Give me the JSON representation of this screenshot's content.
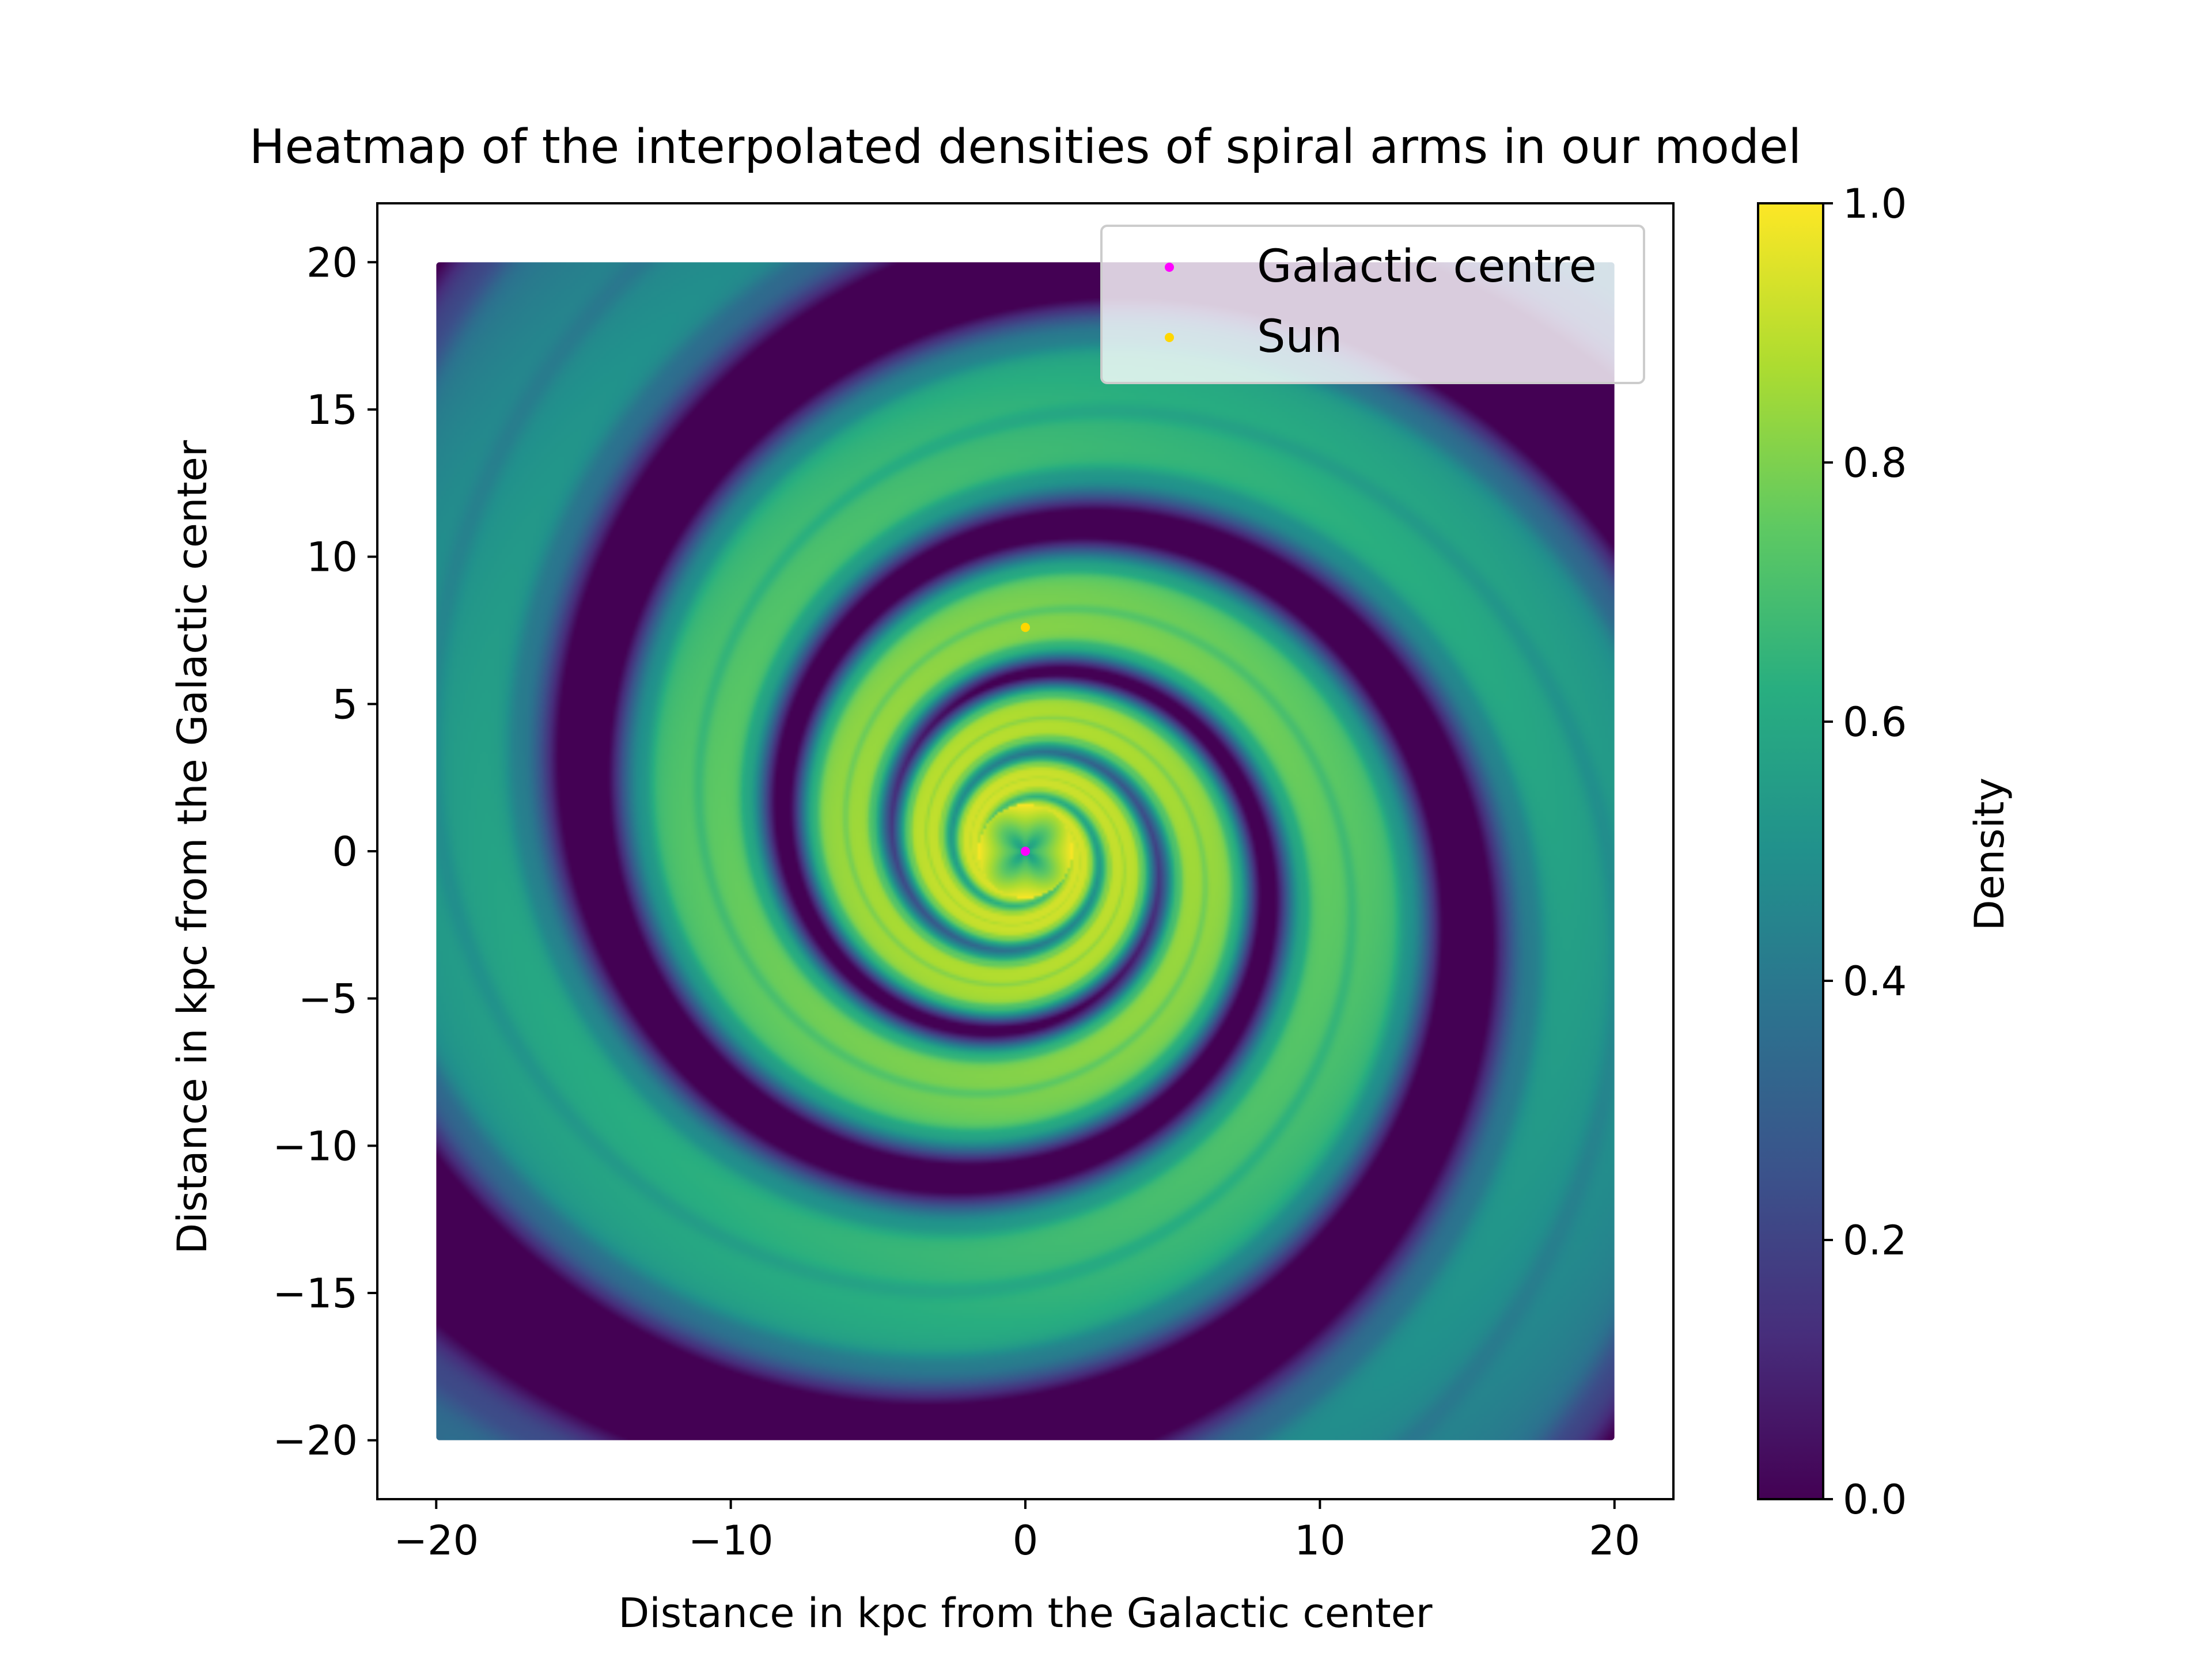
{
  "chart_data": {
    "type": "heatmap",
    "title": "Heatmap of the interpolated densities of spiral arms in our model",
    "xlabel": "Distance in kpc from the Galactic center",
    "ylabel": "Distance in kpc from the Galactic center",
    "xlim": [
      -22,
      22
    ],
    "ylim": [
      -22,
      22
    ],
    "data_extent": {
      "x": [
        -20,
        20
      ],
      "y": [
        -20,
        20
      ]
    },
    "xticks": [
      -20,
      -10,
      0,
      10,
      20
    ],
    "yticks": [
      -20,
      -15,
      -10,
      -5,
      0,
      5,
      10,
      15,
      20
    ],
    "xtick_labels": [
      "−20",
      "−10",
      "0",
      "10",
      "20"
    ],
    "ytick_labels": [
      "−20",
      "−15",
      "−10",
      "−5",
      "0",
      "5",
      "10",
      "15",
      "20"
    ],
    "colorbar": {
      "label": "Density",
      "range": [
        0.0,
        1.0
      ],
      "ticks": [
        0.0,
        0.2,
        0.4,
        0.6,
        0.8,
        1.0
      ],
      "tick_labels": [
        "0.0",
        "0.2",
        "0.4",
        "0.6",
        "0.8",
        "1.0"
      ],
      "colormap": "viridis"
    },
    "grid": false,
    "legend": {
      "position": "top-right"
    },
    "series": [
      {
        "name": "Galactic centre",
        "type": "scatter",
        "x": [
          0
        ],
        "y": [
          0
        ],
        "color": "#ff00ff"
      },
      {
        "name": "Sun",
        "type": "scatter",
        "x": [
          0
        ],
        "y": [
          7.6
        ],
        "color": "#ffd700"
      }
    ]
  }
}
